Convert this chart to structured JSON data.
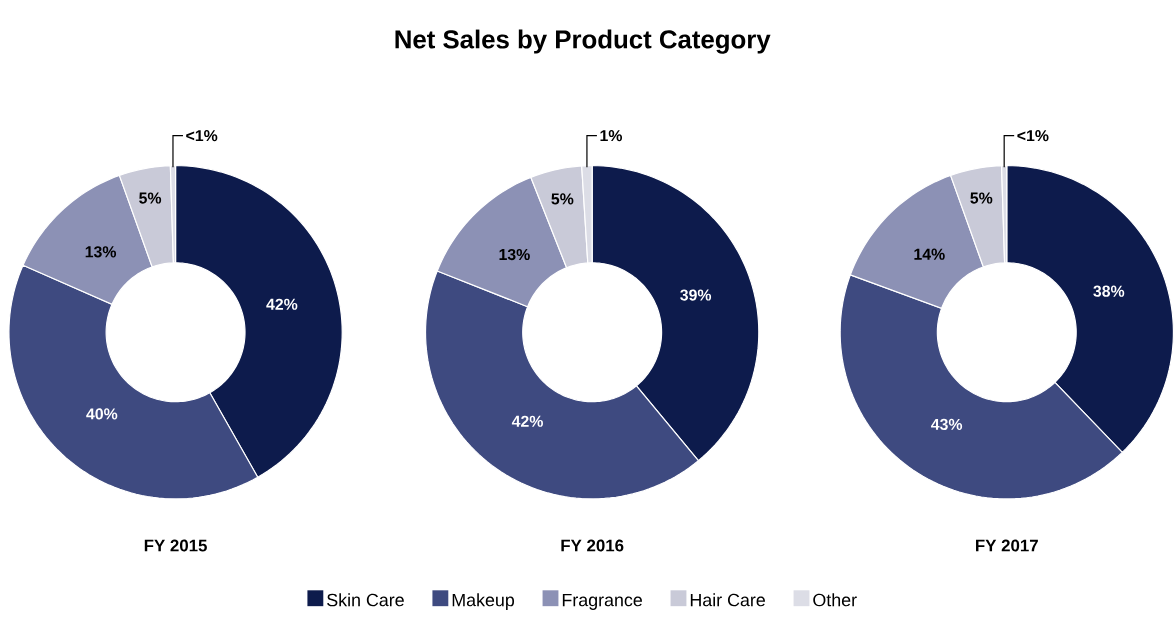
{
  "chart_data": [
    {
      "type": "donut",
      "xlabel": "FY 2015",
      "categories": [
        "Skin Care",
        "Makeup",
        "Fragrance",
        "Hair Care",
        "Other"
      ],
      "values": [
        42,
        40,
        13,
        5,
        0.5
      ],
      "value_labels": [
        "42%",
        "40%",
        "13%",
        "5%",
        "<1%"
      ],
      "colors": [
        "#0d1b4c",
        "#3e4a80",
        "#8c91b5",
        "#c9cad8",
        "#dcdde6"
      ],
      "legend": "bottom"
    },
    {
      "type": "donut",
      "title": "Net Sales by Product Category",
      "xlabel": "FY 2016",
      "categories": [
        null,
        null,
        null,
        null,
        null
      ],
      "values": [
        39,
        42,
        13,
        5,
        1
      ],
      "value_labels": [
        "39%",
        "42%",
        "13%",
        "5%",
        "1%"
      ],
      "colors": [
        "#0d1b4c",
        "#3e4a80",
        "#8c91b5",
        "#c9cad8",
        "#dcdde6"
      ]
    },
    {
      "type": "donut",
      "xlabel": "FY 2017",
      "categories": [
        null,
        null,
        null,
        null,
        null
      ],
      "values": [
        38,
        43,
        14,
        5,
        0.5
      ],
      "value_labels": [
        "38%",
        "43%",
        "14%",
        "5%",
        "<1%"
      ],
      "colors": [
        "#0d1b4c",
        "#3e4a80",
        "#8c91b5",
        "#c9cad8",
        "#dcdde6"
      ]
    }
  ]
}
